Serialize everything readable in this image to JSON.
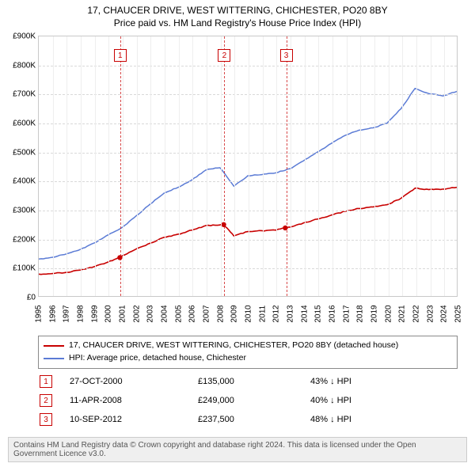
{
  "title": {
    "line1": "17, CHAUCER DRIVE, WEST WITTERING, CHICHESTER, PO20 8BY",
    "line2": "Price paid vs. HM Land Registry's House Price Index (HPI)"
  },
  "chart": {
    "type": "line",
    "background_color": "#ffffff",
    "grid_color_x": "#eeeeee",
    "grid_color_y": "#d9d9d9",
    "border_color": "#c9c9c9",
    "ylabel_prefix": "£",
    "ylim": [
      0,
      900
    ],
    "ytick_step": 100,
    "ytick_labels": [
      "£0",
      "£100K",
      "£200K",
      "£300K",
      "£400K",
      "£500K",
      "£600K",
      "£700K",
      "£800K",
      "£900K"
    ],
    "x_years": [
      1995,
      1996,
      1997,
      1998,
      1999,
      2000,
      2001,
      2002,
      2003,
      2004,
      2005,
      2006,
      2007,
      2008,
      2009,
      2010,
      2011,
      2012,
      2013,
      2014,
      2015,
      2016,
      2017,
      2018,
      2019,
      2020,
      2021,
      2022,
      2023,
      2024,
      2025
    ],
    "xlim": [
      1995,
      2025
    ],
    "series": [
      {
        "name": "17, CHAUCER DRIVE, WEST WITTERING, CHICHESTER, PO20 8BY (detached house)",
        "color": "#c80000",
        "line_width": 1.6,
        "values": [
          [
            1995,
            78
          ],
          [
            1996,
            80
          ],
          [
            1997,
            84
          ],
          [
            1998,
            92
          ],
          [
            1999,
            104
          ],
          [
            2000,
            120
          ],
          [
            2000.82,
            135
          ],
          [
            2001,
            142
          ],
          [
            2002,
            165
          ],
          [
            2003,
            185
          ],
          [
            2004,
            205
          ],
          [
            2005,
            216
          ],
          [
            2006,
            230
          ],
          [
            2007,
            246
          ],
          [
            2008,
            248
          ],
          [
            2008.27,
            249
          ],
          [
            2009,
            210
          ],
          [
            2010,
            225
          ],
          [
            2011,
            228
          ],
          [
            2012,
            230
          ],
          [
            2012.69,
            237.5
          ],
          [
            2013,
            240
          ],
          [
            2014,
            255
          ],
          [
            2015,
            268
          ],
          [
            2016,
            282
          ],
          [
            2017,
            295
          ],
          [
            2018,
            305
          ],
          [
            2019,
            310
          ],
          [
            2020,
            318
          ],
          [
            2021,
            340
          ],
          [
            2022,
            375
          ],
          [
            2023,
            370
          ],
          [
            2024,
            372
          ],
          [
            2025,
            378
          ]
        ]
      },
      {
        "name": "HPI: Average price, detached house, Chichester",
        "color": "#5b7bd5",
        "line_width": 1.5,
        "values": [
          [
            1995,
            130
          ],
          [
            1996,
            136
          ],
          [
            1997,
            148
          ],
          [
            1998,
            164
          ],
          [
            1999,
            186
          ],
          [
            2000,
            214
          ],
          [
            2001,
            240
          ],
          [
            2002,
            280
          ],
          [
            2003,
            320
          ],
          [
            2004,
            358
          ],
          [
            2005,
            378
          ],
          [
            2006,
            404
          ],
          [
            2007,
            438
          ],
          [
            2008,
            446
          ],
          [
            2009,
            382
          ],
          [
            2010,
            418
          ],
          [
            2011,
            422
          ],
          [
            2012,
            428
          ],
          [
            2013,
            442
          ],
          [
            2014,
            470
          ],
          [
            2015,
            500
          ],
          [
            2016,
            530
          ],
          [
            2017,
            558
          ],
          [
            2018,
            576
          ],
          [
            2019,
            584
          ],
          [
            2020,
            600
          ],
          [
            2021,
            650
          ],
          [
            2022,
            720
          ],
          [
            2023,
            702
          ],
          [
            2024,
            694
          ],
          [
            2025,
            710
          ]
        ]
      }
    ],
    "markers": [
      {
        "num": "1",
        "x": 2000.82,
        "y": 135
      },
      {
        "num": "2",
        "x": 2008.27,
        "y": 249
      },
      {
        "num": "3",
        "x": 2012.69,
        "y": 237.5
      }
    ],
    "marker_color": "#c80000"
  },
  "legend": {
    "border_color": "#8a8a8a",
    "rows": [
      {
        "color": "#c80000",
        "label": "17, CHAUCER DRIVE, WEST WITTERING, CHICHESTER, PO20 8BY (detached house)"
      },
      {
        "color": "#5b7bd5",
        "label": "HPI: Average price, detached house, Chichester"
      }
    ]
  },
  "events": {
    "arrow": "↓",
    "rows": [
      {
        "num": "1",
        "date": "27-OCT-2000",
        "price": "£135,000",
        "diff": "43% ↓ HPI"
      },
      {
        "num": "2",
        "date": "11-APR-2008",
        "price": "£249,000",
        "diff": "40% ↓ HPI"
      },
      {
        "num": "3",
        "date": "10-SEP-2012",
        "price": "£237,500",
        "diff": "48% ↓ HPI"
      }
    ]
  },
  "attribution": "Contains HM Land Registry data © Crown copyright and database right 2024. This data is licensed under the Open Government Licence v3.0."
}
